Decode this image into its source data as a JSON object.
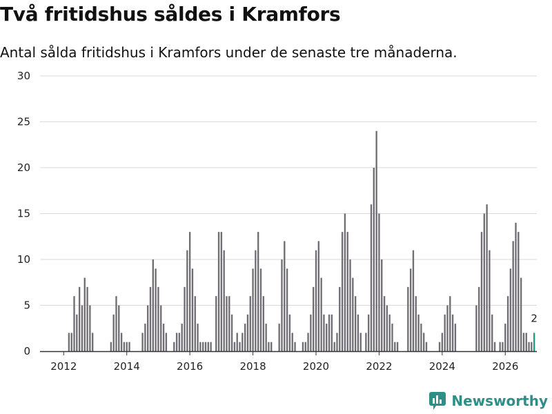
{
  "header": {
    "title": "Två fritidshus såldes i Kramfors",
    "subtitle": "Antal sålda fritidshus i Kramfors under de senaste tre månaderna."
  },
  "brand": {
    "name": "Newsworthy",
    "color": "#2f8f86",
    "icon": "bar-chart-pin-icon"
  },
  "colors": {
    "bar": "#706e74",
    "highlight": "#1d9b8c",
    "grid": "#d8d8d8",
    "axis": "#333333"
  },
  "chart_data": {
    "type": "bar",
    "title": "Två fritidshus såldes i Kramfors",
    "subtitle": "Antal sålda fritidshus i Kramfors under de senaste tre månaderna.",
    "xlabel": "",
    "ylabel": "",
    "ylim": [
      0,
      30
    ],
    "yticks": [
      0,
      5,
      10,
      15,
      20,
      25,
      30
    ],
    "xlim": [
      2011.25,
      2027.0
    ],
    "xticks": [
      2012,
      2014,
      2016,
      2018,
      2020,
      2022,
      2024,
      2026
    ],
    "start": 2011.5,
    "step": 0.0833333,
    "values": [
      0,
      0,
      0,
      0,
      0,
      0,
      0,
      0,
      2,
      2,
      6,
      4,
      7,
      5,
      8,
      7,
      5,
      2,
      0,
      0,
      0,
      0,
      0,
      0,
      1,
      4,
      6,
      5,
      2,
      1,
      1,
      1,
      0,
      0,
      0,
      0,
      2,
      3,
      5,
      7,
      10,
      9,
      7,
      5,
      3,
      2,
      0,
      0,
      1,
      2,
      2,
      3,
      7,
      11,
      13,
      9,
      6,
      3,
      1,
      1,
      1,
      1,
      1,
      0,
      6,
      13,
      13,
      11,
      6,
      6,
      4,
      1,
      2,
      1,
      2,
      3,
      4,
      6,
      9,
      11,
      13,
      9,
      6,
      3,
      1,
      1,
      0,
      0,
      3,
      10,
      12,
      9,
      4,
      2,
      1,
      0,
      0,
      1,
      1,
      2,
      4,
      7,
      11,
      12,
      8,
      4,
      3,
      4,
      4,
      1,
      2,
      7,
      13,
      15,
      13,
      10,
      8,
      6,
      4,
      2,
      0,
      2,
      4,
      16,
      20,
      24,
      15,
      10,
      6,
      5,
      4,
      3,
      1,
      1,
      0,
      0,
      0,
      7,
      9,
      11,
      6,
      4,
      3,
      2,
      1,
      0,
      0,
      0,
      0,
      1,
      2,
      4,
      5,
      6,
      4,
      3,
      0,
      0,
      0,
      0,
      0,
      0,
      0,
      5,
      7,
      13,
      15,
      16,
      11,
      4,
      1,
      0,
      1,
      1,
      3,
      6,
      9,
      12,
      14,
      13,
      8,
      2,
      2,
      1,
      1,
      2
    ],
    "highlight_last": true,
    "annotations": [
      {
        "text": "2",
        "value": 2
      }
    ]
  }
}
